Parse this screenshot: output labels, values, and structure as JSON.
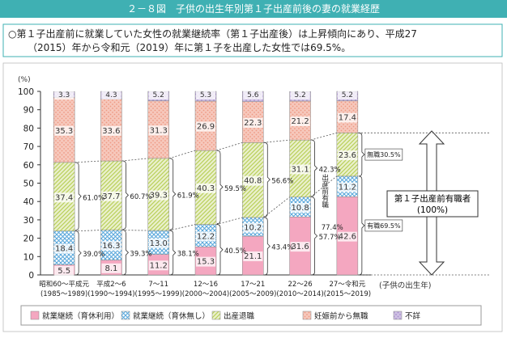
{
  "header": {
    "title": "２－８図　子供の出生年別第１子出産前後の妻の就業経歴"
  },
  "summary": {
    "lines": [
      "○第１子出産前に就業していた女性の就業継続率（第１子出産後）は上昇傾向にあり、平成27",
      "（2015）年から令和元（2019）年に第１子を出産した女性では69.5%。"
    ]
  },
  "chart_data": {
    "type": "stacked-bar",
    "y_unit": "(%)",
    "x_label": "(子供の出生年)",
    "categories": [
      "昭和60～平成元",
      "平成2～6",
      "7～11",
      "12～16",
      "17～21",
      "22～26",
      "27～令和元"
    ],
    "category_periods": [
      "(1985～1989)",
      "(1990～1994)",
      "(1995～1999)",
      "(2000～2004)",
      "(2005～2009)",
      "(2010～2014)",
      "(2015～2019)"
    ],
    "ylim": [
      0,
      100
    ],
    "yticks": [
      0,
      10,
      20,
      30,
      40,
      50,
      60,
      70,
      80,
      90,
      100
    ],
    "series": [
      {
        "name": "就業継続（育休利用）",
        "color": "#f4a7c0",
        "pattern": "solid",
        "values": [
          5.5,
          8.1,
          11.2,
          15.3,
          21.1,
          31.6,
          42.6
        ]
      },
      {
        "name": "就業継続（育休無し）",
        "color": "#5aa8db",
        "pattern": "cross",
        "values": [
          18.4,
          16.3,
          13.0,
          12.2,
          10.2,
          10.8,
          11.2
        ],
        "value_labels": [
          "18.4",
          "16.3",
          "13.0",
          "12.2",
          "10.2",
          "10.8",
          "11.2"
        ]
      },
      {
        "name": "出産退職",
        "color": "#b9cf5a",
        "pattern": "hatch",
        "values": [
          37.4,
          37.7,
          39.3,
          40.3,
          40.8,
          31.1,
          23.6
        ]
      },
      {
        "name": "妊娠前から無職",
        "color": "#ee9a84",
        "pattern": "dots",
        "values": [
          35.3,
          33.6,
          31.3,
          26.9,
          22.3,
          21.2,
          17.4
        ]
      },
      {
        "name": "不詳",
        "color": "#a58ccc",
        "pattern": "dots",
        "values": [
          3.3,
          4.3,
          5.2,
          5.3,
          5.6,
          5.2,
          5.2
        ]
      }
    ],
    "continuation_rates": [
      "39.0%",
      "39.3%",
      "38.1%",
      "40.5%",
      "43.4%",
      "57.7%"
    ],
    "employed_rates": [
      "61.0%",
      "60.7%",
      "61.9%",
      "59.5%",
      "56.6%",
      "42.3%"
    ],
    "employed_note": "出産前有職",
    "employed_note_value": "77.4%",
    "side_labels": {
      "unemployed": "無職30.5%",
      "employed": "有職69.5%"
    },
    "side_box": [
      "第１子出産前有職者",
      "(100%)"
    ]
  }
}
